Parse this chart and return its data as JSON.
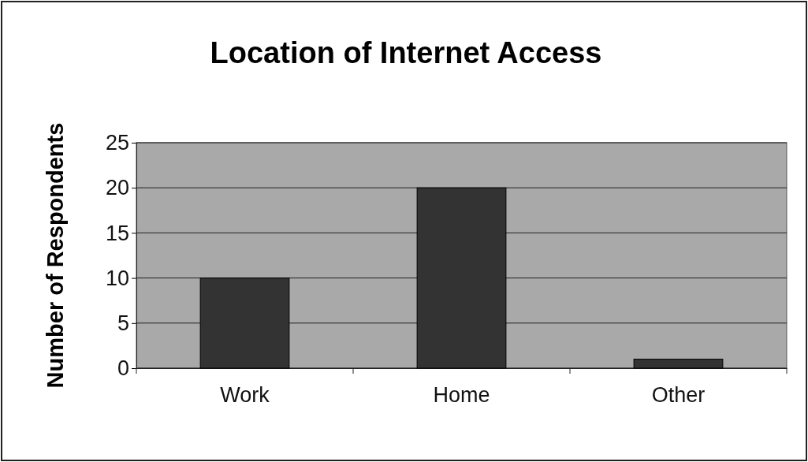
{
  "chart_data": {
    "type": "bar",
    "title": "Location of Internet Access",
    "ylabel": "Number of Respondents",
    "categories": [
      "Work",
      "Home",
      "Other"
    ],
    "values": [
      10,
      20,
      1
    ],
    "color": "#333333",
    "ylim": [
      0,
      25
    ],
    "yticks": [
      0,
      5,
      10,
      15,
      20,
      25
    ],
    "grid": "y"
  }
}
